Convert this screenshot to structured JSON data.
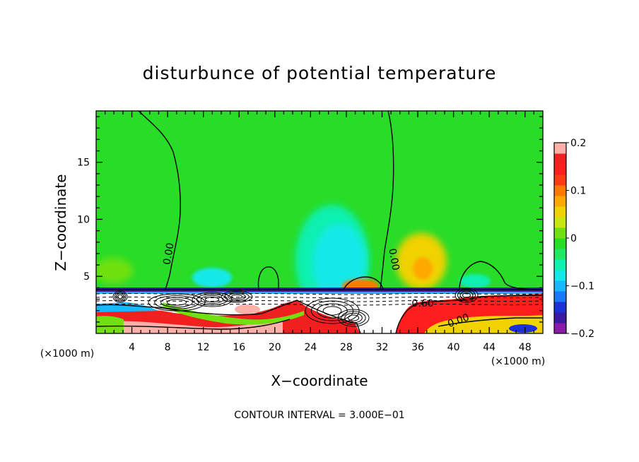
{
  "chart_data": {
    "type": "heatmap",
    "title": "disturbunce of potential temperature",
    "xlabel": "X−coordinate",
    "ylabel": "Z−coordinate",
    "x_unit_label": "(×1000 m)",
    "x_ticks": [
      "4",
      "8",
      "12",
      "16",
      "20",
      "24",
      "28",
      "32",
      "36",
      "40",
      "44",
      "48"
    ],
    "y_ticks": [
      "5",
      "10",
      "15"
    ],
    "xlim": [
      0,
      50
    ],
    "ylim": [
      0,
      19.5
    ],
    "contour_interval_text": "CONTOUR INTERVAL = 3.000E−01",
    "contour_labels": [
      "0.00",
      "0.00",
      "0.60",
      "0.00"
    ],
    "colorbar": {
      "ticks": [
        "0.2",
        "0.1",
        "0",
        "−0.1",
        "−0.2"
      ],
      "range": [
        -0.2,
        0.2
      ],
      "colors": [
        "#8a1aa8",
        "#3a1aa0",
        "#1a32d6",
        "#1a78ff",
        "#18b8ff",
        "#12e8e8",
        "#10f0b0",
        "#20e860",
        "#28dc28",
        "#70e010",
        "#c8e610",
        "#f0d200",
        "#ffa800",
        "#ff7800",
        "#ff3a14",
        "#ff1e1e",
        "#f02020",
        "#ffb0a8"
      ]
    },
    "background_value": 0.0,
    "features": [
      {
        "name": "negative-plume-center",
        "x": 28.5,
        "z": 7.5,
        "value": -0.05
      },
      {
        "name": "positive-plume-right",
        "x": 36.5,
        "z": 6.5,
        "value": 0.06
      },
      {
        "name": "positive-plume-left",
        "x": 2.5,
        "z": 5.5,
        "value": 0.02
      },
      {
        "name": "stable-layer-top",
        "z": 4.0,
        "value": -0.15
      },
      {
        "name": "warm-layer-near-ground",
        "z": 1.2,
        "value": 0.18
      }
    ]
  }
}
